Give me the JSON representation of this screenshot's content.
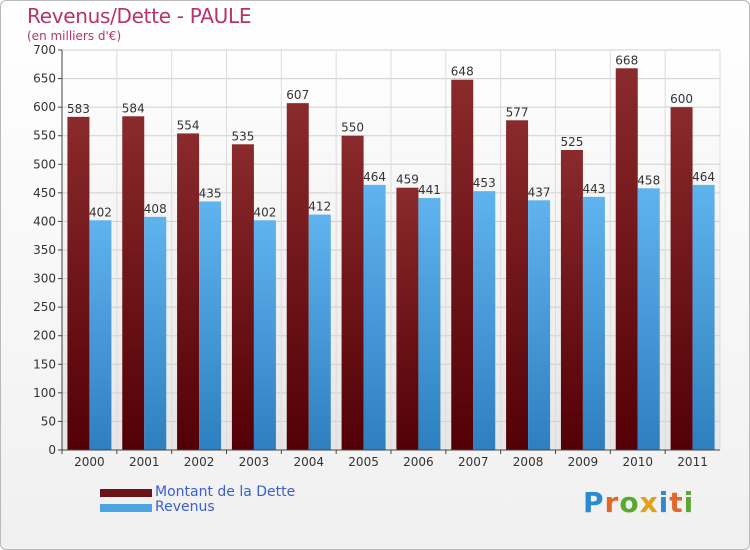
{
  "header": {
    "title": "Revenus/Dette - PAULE",
    "subtitle": "(en milliers d'€)"
  },
  "logo": {
    "text": "Proxiti",
    "letters": [
      "P",
      "r",
      "o",
      "x",
      "i",
      "t",
      "i"
    ],
    "colors": [
      "#2a8bd0",
      "#e0682a",
      "#5aa82e",
      "#e2a018",
      "#2a8bd0",
      "#e0682a",
      "#5aa82e"
    ]
  },
  "legend": {
    "items": [
      {
        "label": "Montant de la Dette",
        "color": "#6b1418"
      },
      {
        "label": "Revenus",
        "color": "#4aa3e3"
      }
    ]
  },
  "chart_data": {
    "type": "bar",
    "title": "Revenus/Dette - PAULE",
    "subtitle": "(en milliers d'€)",
    "categories": [
      "2000",
      "2001",
      "2002",
      "2003",
      "2004",
      "2005",
      "2006",
      "2007",
      "2008",
      "2009",
      "2010",
      "2011"
    ],
    "series": [
      {
        "name": "Montant de la Dette",
        "color": "#6b1418",
        "values": [
          583,
          584,
          554,
          535,
          607,
          550,
          459,
          648,
          577,
          525,
          668,
          600
        ]
      },
      {
        "name": "Revenus",
        "color": "#4aa3e3",
        "values": [
          402,
          408,
          435,
          402,
          412,
          464,
          441,
          453,
          437,
          443,
          458,
          464
        ]
      }
    ],
    "ylim": [
      0,
      700
    ],
    "yticks": [
      0,
      50,
      100,
      150,
      200,
      250,
      300,
      350,
      400,
      450,
      500,
      550,
      600,
      650,
      700
    ],
    "grid": true,
    "legend": "bottom-left"
  }
}
